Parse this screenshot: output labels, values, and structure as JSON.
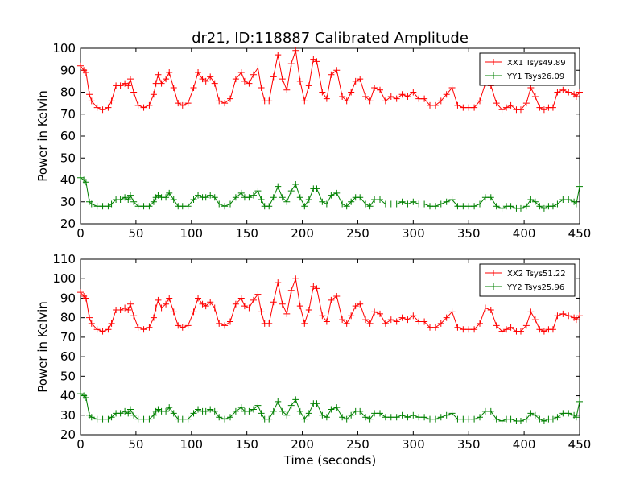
{
  "figure_title": "dr21, ID:118887 Calibrated Amplitude",
  "chart_data": [
    {
      "type": "line",
      "xlabel": "",
      "ylabel": "Power in Kelvin",
      "xlim": [
        0,
        450
      ],
      "ylim": [
        20,
        100
      ],
      "xticks": [
        0,
        50,
        100,
        150,
        200,
        250,
        300,
        350,
        400,
        450
      ],
      "yticks": [
        20,
        30,
        40,
        50,
        60,
        70,
        80,
        90,
        100
      ],
      "legend_position": "top-right",
      "series": [
        {
          "name": "XX1 Tsys49.89",
          "color": "#ff0000",
          "x": [
            0,
            3,
            5,
            8,
            10,
            15,
            20,
            25,
            28,
            32,
            36,
            40,
            43,
            45,
            48,
            52,
            57,
            62,
            66,
            68,
            70,
            73,
            77,
            80,
            84,
            88,
            92,
            97,
            102,
            106,
            110,
            113,
            117,
            121,
            125,
            130,
            135,
            140,
            145,
            148,
            152,
            156,
            160,
            163,
            166,
            170,
            174,
            178,
            182,
            186,
            190,
            194,
            198,
            202,
            206,
            210,
            213,
            218,
            222,
            226,
            231,
            236,
            240,
            244,
            248,
            252,
            257,
            261,
            265,
            270,
            275,
            280,
            285,
            290,
            295,
            300,
            305,
            310,
            315,
            320,
            325,
            330,
            335,
            340,
            345,
            350,
            355,
            360,
            365,
            370,
            375,
            380,
            384,
            388,
            393,
            397,
            402,
            406,
            410,
            414,
            418,
            422,
            426,
            430,
            435,
            440,
            445,
            447,
            450
          ],
          "values": [
            92,
            90,
            89,
            79,
            76,
            73,
            72,
            73,
            76,
            83,
            83,
            84,
            83,
            86,
            80,
            74,
            73,
            74,
            79,
            84,
            88,
            84,
            86,
            89,
            82,
            75,
            74,
            75,
            82,
            89,
            86,
            85,
            87,
            84,
            76,
            75,
            77,
            86,
            89,
            85,
            84,
            88,
            91,
            82,
            76,
            76,
            87,
            97,
            86,
            81,
            93,
            99,
            85,
            76,
            83,
            95,
            94,
            80,
            77,
            88,
            90,
            78,
            76,
            80,
            85,
            86,
            78,
            76,
            82,
            81,
            76,
            78,
            77,
            79,
            78,
            80,
            77,
            77,
            74,
            74,
            76,
            79,
            82,
            74,
            73,
            73,
            73,
            76,
            84,
            83,
            75,
            72,
            73,
            74,
            72,
            72,
            75,
            82,
            78,
            73,
            72,
            73,
            73,
            80,
            81,
            80,
            79,
            78,
            80
          ],
          "markers": true
        },
        {
          "name": "YY1 Tsys26.09",
          "color": "#008000",
          "x": [
            0,
            3,
            5,
            8,
            10,
            15,
            20,
            25,
            28,
            32,
            36,
            40,
            43,
            45,
            48,
            52,
            57,
            62,
            66,
            68,
            70,
            73,
            77,
            80,
            84,
            88,
            92,
            97,
            102,
            106,
            110,
            113,
            117,
            121,
            125,
            130,
            135,
            140,
            145,
            148,
            152,
            156,
            160,
            163,
            166,
            170,
            174,
            178,
            182,
            186,
            190,
            194,
            198,
            202,
            206,
            210,
            213,
            218,
            222,
            226,
            231,
            236,
            240,
            244,
            248,
            252,
            257,
            261,
            265,
            270,
            275,
            280,
            285,
            290,
            295,
            300,
            305,
            310,
            315,
            320,
            325,
            330,
            335,
            340,
            345,
            350,
            355,
            360,
            365,
            370,
            375,
            380,
            384,
            388,
            393,
            397,
            402,
            406,
            410,
            414,
            418,
            422,
            426,
            430,
            435,
            440,
            445,
            447,
            450
          ],
          "values": [
            41,
            40,
            39,
            30,
            29,
            28,
            28,
            28,
            29,
            31,
            31,
            32,
            31,
            33,
            30,
            28,
            28,
            28,
            30,
            32,
            33,
            32,
            32,
            34,
            31,
            28,
            28,
            28,
            31,
            33,
            32,
            32,
            33,
            32,
            29,
            28,
            29,
            32,
            34,
            32,
            32,
            33,
            35,
            31,
            28,
            28,
            32,
            37,
            32,
            30,
            35,
            38,
            32,
            28,
            31,
            36,
            36,
            30,
            29,
            33,
            34,
            29,
            28,
            30,
            32,
            32,
            29,
            28,
            31,
            31,
            29,
            29,
            29,
            30,
            29,
            30,
            29,
            29,
            28,
            28,
            29,
            30,
            31,
            28,
            28,
            28,
            28,
            29,
            32,
            32,
            28,
            27,
            28,
            28,
            27,
            27,
            28,
            31,
            30,
            28,
            27,
            28,
            28,
            29,
            31,
            31,
            30,
            29,
            37
          ],
          "markers": true
        }
      ]
    },
    {
      "type": "line",
      "xlabel": "Time (seconds)",
      "ylabel": "Power in Kelvin",
      "xlim": [
        0,
        450
      ],
      "ylim": [
        20,
        110
      ],
      "xticks": [
        0,
        50,
        100,
        150,
        200,
        250,
        300,
        350,
        400,
        450
      ],
      "yticks": [
        20,
        30,
        40,
        50,
        60,
        70,
        80,
        90,
        100,
        110
      ],
      "legend_position": "top-right",
      "series": [
        {
          "name": "XX2 Tsys51.22",
          "color": "#ff0000",
          "x": [
            0,
            3,
            5,
            8,
            10,
            15,
            20,
            25,
            28,
            32,
            36,
            40,
            43,
            45,
            48,
            52,
            57,
            62,
            66,
            68,
            70,
            73,
            77,
            80,
            84,
            88,
            92,
            97,
            102,
            106,
            110,
            113,
            117,
            121,
            125,
            130,
            135,
            140,
            145,
            148,
            152,
            156,
            160,
            163,
            166,
            170,
            174,
            178,
            182,
            186,
            190,
            194,
            198,
            202,
            206,
            210,
            213,
            218,
            222,
            226,
            231,
            236,
            240,
            244,
            248,
            252,
            257,
            261,
            265,
            270,
            275,
            280,
            285,
            290,
            295,
            300,
            305,
            310,
            315,
            320,
            325,
            330,
            335,
            340,
            345,
            350,
            355,
            360,
            365,
            370,
            375,
            380,
            384,
            388,
            393,
            397,
            402,
            406,
            410,
            414,
            418,
            422,
            426,
            430,
            435,
            440,
            445,
            447,
            450
          ],
          "values": [
            93,
            91,
            90,
            80,
            77,
            74,
            73,
            74,
            77,
            84,
            84,
            85,
            84,
            87,
            81,
            75,
            74,
            75,
            80,
            85,
            89,
            85,
            87,
            90,
            83,
            76,
            75,
            76,
            83,
            90,
            87,
            86,
            88,
            85,
            77,
            76,
            78,
            87,
            90,
            86,
            85,
            89,
            92,
            83,
            77,
            77,
            88,
            98,
            87,
            82,
            94,
            100,
            86,
            77,
            84,
            96,
            95,
            81,
            78,
            89,
            91,
            79,
            77,
            81,
            86,
            87,
            79,
            77,
            83,
            82,
            77,
            79,
            78,
            80,
            79,
            81,
            78,
            78,
            75,
            75,
            77,
            80,
            83,
            75,
            74,
            74,
            74,
            77,
            85,
            84,
            76,
            73,
            74,
            75,
            73,
            73,
            76,
            83,
            79,
            74,
            73,
            74,
            74,
            81,
            82,
            81,
            80,
            79,
            81
          ],
          "markers": true
        },
        {
          "name": "YY2 Tsys25.96",
          "color": "#008000",
          "x": [
            0,
            3,
            5,
            8,
            10,
            15,
            20,
            25,
            28,
            32,
            36,
            40,
            43,
            45,
            48,
            52,
            57,
            62,
            66,
            68,
            70,
            73,
            77,
            80,
            84,
            88,
            92,
            97,
            102,
            106,
            110,
            113,
            117,
            121,
            125,
            130,
            135,
            140,
            145,
            148,
            152,
            156,
            160,
            163,
            166,
            170,
            174,
            178,
            182,
            186,
            190,
            194,
            198,
            202,
            206,
            210,
            213,
            218,
            222,
            226,
            231,
            236,
            240,
            244,
            248,
            252,
            257,
            261,
            265,
            270,
            275,
            280,
            285,
            290,
            295,
            300,
            305,
            310,
            315,
            320,
            325,
            330,
            335,
            340,
            345,
            350,
            355,
            360,
            365,
            370,
            375,
            380,
            384,
            388,
            393,
            397,
            402,
            406,
            410,
            414,
            418,
            422,
            426,
            430,
            435,
            440,
            445,
            447,
            450
          ],
          "values": [
            41,
            40,
            39,
            30,
            29,
            28,
            28,
            28,
            29,
            31,
            31,
            32,
            31,
            33,
            30,
            28,
            28,
            28,
            30,
            32,
            33,
            32,
            32,
            34,
            31,
            28,
            28,
            28,
            31,
            33,
            32,
            32,
            33,
            32,
            29,
            28,
            29,
            32,
            34,
            32,
            32,
            33,
            35,
            31,
            28,
            28,
            32,
            37,
            32,
            30,
            35,
            38,
            32,
            28,
            31,
            36,
            36,
            30,
            29,
            33,
            34,
            29,
            28,
            30,
            32,
            32,
            29,
            28,
            31,
            31,
            29,
            29,
            29,
            30,
            29,
            30,
            29,
            29,
            28,
            28,
            29,
            30,
            31,
            28,
            28,
            28,
            28,
            29,
            32,
            32,
            28,
            27,
            28,
            28,
            27,
            27,
            28,
            31,
            30,
            28,
            27,
            28,
            28,
            29,
            31,
            31,
            30,
            29,
            37
          ],
          "markers": true
        }
      ]
    }
  ]
}
